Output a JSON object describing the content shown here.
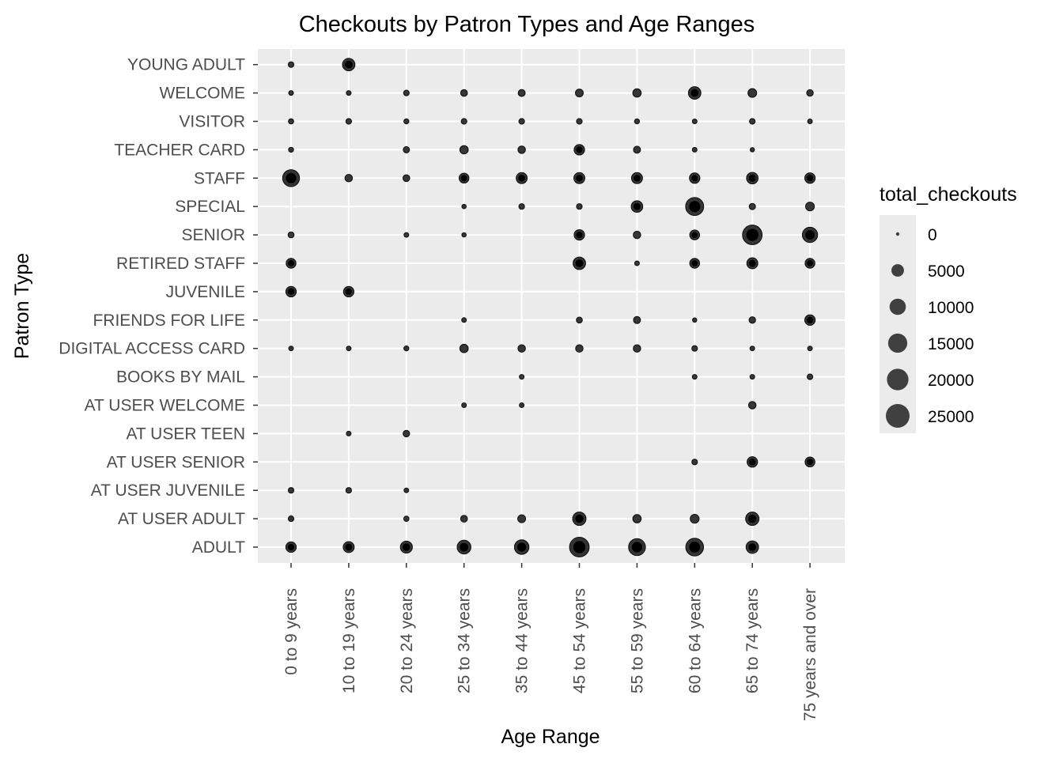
{
  "chart_data": {
    "type": "scatter",
    "title": "Checkouts by Patron Types and Age Ranges",
    "xlabel": "Age Range",
    "ylabel": "Patron Type",
    "x_categories": [
      "0 to 9 years",
      "10 to 19 years",
      "20 to 24 years",
      "25 to 34 years",
      "35 to 44 years",
      "45 to 54 years",
      "55 to 59 years",
      "60 to 64 years",
      "65 to 74 years",
      "75 years and over"
    ],
    "y_categories": [
      "ADULT",
      "AT USER ADULT",
      "AT USER JUVENILE",
      "AT USER SENIOR",
      "AT USER TEEN",
      "AT USER WELCOME",
      "BOOKS BY MAIL",
      "DIGITAL ACCESS CARD",
      "FRIENDS FOR LIFE",
      "JUVENILE",
      "RETIRED STAFF",
      "SENIOR",
      "SPECIAL",
      "STAFF",
      "TEACHER CARD",
      "VISITOR",
      "WELCOME",
      "YOUNG ADULT"
    ],
    "size_variable": "total_checkouts",
    "legend": {
      "title": "total_checkouts",
      "breaks": [
        0,
        5000,
        10000,
        15000,
        20000,
        25000
      ],
      "labels": [
        "0",
        "5000",
        "10000",
        "15000",
        "20000",
        "25000"
      ],
      "position": "right"
    },
    "grid": true,
    "colors": {
      "panel": "#ebebeb",
      "grid": "#ffffff",
      "point": "#000000",
      "legend_point": "#404040",
      "text": "#4d4d4d"
    },
    "points": [
      {
        "patron": "YOUNG ADULT",
        "age": "0 to 9 years",
        "total_checkouts": 300
      },
      {
        "patron": "YOUNG ADULT",
        "age": "10 to 19 years",
        "total_checkouts": 5000
      },
      {
        "patron": "WELCOME",
        "age": "0 to 9 years",
        "total_checkouts": 100
      },
      {
        "patron": "WELCOME",
        "age": "10 to 19 years",
        "total_checkouts": 100
      },
      {
        "patron": "WELCOME",
        "age": "20 to 24 years",
        "total_checkouts": 300
      },
      {
        "patron": "WELCOME",
        "age": "25 to 34 years",
        "total_checkouts": 700
      },
      {
        "patron": "WELCOME",
        "age": "35 to 44 years",
        "total_checkouts": 800
      },
      {
        "patron": "WELCOME",
        "age": "45 to 54 years",
        "total_checkouts": 1200
      },
      {
        "patron": "WELCOME",
        "age": "55 to 59 years",
        "total_checkouts": 1500
      },
      {
        "patron": "WELCOME",
        "age": "60 to 64 years",
        "total_checkouts": 5000
      },
      {
        "patron": "WELCOME",
        "age": "65 to 74 years",
        "total_checkouts": 1700
      },
      {
        "patron": "WELCOME",
        "age": "75 years and over",
        "total_checkouts": 600
      },
      {
        "patron": "VISITOR",
        "age": "0 to 9 years",
        "total_checkouts": 200
      },
      {
        "patron": "VISITOR",
        "age": "10 to 19 years",
        "total_checkouts": 300
      },
      {
        "patron": "VISITOR",
        "age": "20 to 24 years",
        "total_checkouts": 150
      },
      {
        "patron": "VISITOR",
        "age": "25 to 34 years",
        "total_checkouts": 300
      },
      {
        "patron": "VISITOR",
        "age": "35 to 44 years",
        "total_checkouts": 300
      },
      {
        "patron": "VISITOR",
        "age": "45 to 54 years",
        "total_checkouts": 300
      },
      {
        "patron": "VISITOR",
        "age": "55 to 59 years",
        "total_checkouts": 150
      },
      {
        "patron": "VISITOR",
        "age": "60 to 64 years",
        "total_checkouts": 100
      },
      {
        "patron": "VISITOR",
        "age": "65 to 74 years",
        "total_checkouts": 300
      },
      {
        "patron": "VISITOR",
        "age": "75 years and over",
        "total_checkouts": 100
      },
      {
        "patron": "TEACHER CARD",
        "age": "0 to 9 years",
        "total_checkouts": 150
      },
      {
        "patron": "TEACHER CARD",
        "age": "20 to 24 years",
        "total_checkouts": 500
      },
      {
        "patron": "TEACHER CARD",
        "age": "25 to 34 years",
        "total_checkouts": 1500
      },
      {
        "patron": "TEACHER CARD",
        "age": "35 to 44 years",
        "total_checkouts": 1000
      },
      {
        "patron": "TEACHER CARD",
        "age": "45 to 54 years",
        "total_checkouts": 3000
      },
      {
        "patron": "TEACHER CARD",
        "age": "55 to 59 years",
        "total_checkouts": 800
      },
      {
        "patron": "TEACHER CARD",
        "age": "60 to 64 years",
        "total_checkouts": 100
      },
      {
        "patron": "TEACHER CARD",
        "age": "65 to 74 years",
        "total_checkouts": 50
      },
      {
        "patron": "STAFF",
        "age": "0 to 9 years",
        "total_checkouts": 11000
      },
      {
        "patron": "STAFF",
        "age": "10 to 19 years",
        "total_checkouts": 1000
      },
      {
        "patron": "STAFF",
        "age": "20 to 24 years",
        "total_checkouts": 700
      },
      {
        "patron": "STAFF",
        "age": "25 to 34 years",
        "total_checkouts": 2500
      },
      {
        "patron": "STAFF",
        "age": "35 to 44 years",
        "total_checkouts": 3500
      },
      {
        "patron": "STAFF",
        "age": "45 to 54 years",
        "total_checkouts": 3500
      },
      {
        "patron": "STAFF",
        "age": "55 to 59 years",
        "total_checkouts": 3500
      },
      {
        "patron": "STAFF",
        "age": "60 to 64 years",
        "total_checkouts": 3000
      },
      {
        "patron": "STAFF",
        "age": "65 to 74 years",
        "total_checkouts": 4000
      },
      {
        "patron": "STAFF",
        "age": "75 years and over",
        "total_checkouts": 3000
      },
      {
        "patron": "SPECIAL",
        "age": "25 to 34 years",
        "total_checkouts": 50
      },
      {
        "patron": "SPECIAL",
        "age": "35 to 44 years",
        "total_checkouts": 300
      },
      {
        "patron": "SPECIAL",
        "age": "45 to 54 years",
        "total_checkouts": 300
      },
      {
        "patron": "SPECIAL",
        "age": "55 to 59 years",
        "total_checkouts": 4000
      },
      {
        "patron": "SPECIAL",
        "age": "60 to 64 years",
        "total_checkouts": 13000
      },
      {
        "patron": "SPECIAL",
        "age": "65 to 74 years",
        "total_checkouts": 500
      },
      {
        "patron": "SPECIAL",
        "age": "75 years and over",
        "total_checkouts": 1700
      },
      {
        "patron": "SENIOR",
        "age": "0 to 9 years",
        "total_checkouts": 400
      },
      {
        "patron": "SENIOR",
        "age": "20 to 24 years",
        "total_checkouts": 100
      },
      {
        "patron": "SENIOR",
        "age": "25 to 34 years",
        "total_checkouts": 50
      },
      {
        "patron": "SENIOR",
        "age": "45 to 54 years",
        "total_checkouts": 3000
      },
      {
        "patron": "SENIOR",
        "age": "55 to 59 years",
        "total_checkouts": 1000
      },
      {
        "patron": "SENIOR",
        "age": "60 to 64 years",
        "total_checkouts": 2500
      },
      {
        "patron": "SENIOR",
        "age": "65 to 74 years",
        "total_checkouts": 16000
      },
      {
        "patron": "SENIOR",
        "age": "75 years and over",
        "total_checkouts": 8500
      },
      {
        "patron": "RETIRED STAFF",
        "age": "0 to 9 years",
        "total_checkouts": 2500
      },
      {
        "patron": "RETIRED STAFF",
        "age": "45 to 54 years",
        "total_checkouts": 5000
      },
      {
        "patron": "RETIRED STAFF",
        "age": "55 to 59 years",
        "total_checkouts": 100
      },
      {
        "patron": "RETIRED STAFF",
        "age": "60 to 64 years",
        "total_checkouts": 2500
      },
      {
        "patron": "RETIRED STAFF",
        "age": "65 to 74 years",
        "total_checkouts": 3500
      },
      {
        "patron": "RETIRED STAFF",
        "age": "75 years and over",
        "total_checkouts": 2500
      },
      {
        "patron": "JUVENILE",
        "age": "0 to 9 years",
        "total_checkouts": 3000
      },
      {
        "patron": "JUVENILE",
        "age": "10 to 19 years",
        "total_checkouts": 3000
      },
      {
        "patron": "FRIENDS FOR LIFE",
        "age": "25 to 34 years",
        "total_checkouts": 100
      },
      {
        "patron": "FRIENDS FOR LIFE",
        "age": "45 to 54 years",
        "total_checkouts": 400
      },
      {
        "patron": "FRIENDS FOR LIFE",
        "age": "55 to 59 years",
        "total_checkouts": 800
      },
      {
        "patron": "FRIENDS FOR LIFE",
        "age": "60 to 64 years",
        "total_checkouts": 50
      },
      {
        "patron": "FRIENDS FOR LIFE",
        "age": "65 to 74 years",
        "total_checkouts": 600
      },
      {
        "patron": "FRIENDS FOR LIFE",
        "age": "75 years and over",
        "total_checkouts": 3000
      },
      {
        "patron": "DIGITAL ACCESS CARD",
        "age": "0 to 9 years",
        "total_checkouts": 100
      },
      {
        "patron": "DIGITAL ACCESS CARD",
        "age": "10 to 19 years",
        "total_checkouts": 100
      },
      {
        "patron": "DIGITAL ACCESS CARD",
        "age": "20 to 24 years",
        "total_checkouts": 150
      },
      {
        "patron": "DIGITAL ACCESS CARD",
        "age": "25 to 34 years",
        "total_checkouts": 1500
      },
      {
        "patron": "DIGITAL ACCESS CARD",
        "age": "35 to 44 years",
        "total_checkouts": 1000
      },
      {
        "patron": "DIGITAL ACCESS CARD",
        "age": "45 to 54 years",
        "total_checkouts": 1000
      },
      {
        "patron": "DIGITAL ACCESS CARD",
        "age": "55 to 59 years",
        "total_checkouts": 1000
      },
      {
        "patron": "DIGITAL ACCESS CARD",
        "age": "60 to 64 years",
        "total_checkouts": 300
      },
      {
        "patron": "DIGITAL ACCESS CARD",
        "age": "65 to 74 years",
        "total_checkouts": 100
      },
      {
        "patron": "DIGITAL ACCESS CARD",
        "age": "75 years and over",
        "total_checkouts": 100
      },
      {
        "patron": "BOOKS BY MAIL",
        "age": "35 to 44 years",
        "total_checkouts": 100
      },
      {
        "patron": "BOOKS BY MAIL",
        "age": "60 to 64 years",
        "total_checkouts": 100
      },
      {
        "patron": "BOOKS BY MAIL",
        "age": "65 to 74 years",
        "total_checkouts": 100
      },
      {
        "patron": "BOOKS BY MAIL",
        "age": "75 years and over",
        "total_checkouts": 300
      },
      {
        "patron": "AT USER WELCOME",
        "age": "25 to 34 years",
        "total_checkouts": 100
      },
      {
        "patron": "AT USER WELCOME",
        "age": "35 to 44 years",
        "total_checkouts": 100
      },
      {
        "patron": "AT USER WELCOME",
        "age": "65 to 74 years",
        "total_checkouts": 1000
      },
      {
        "patron": "AT USER TEEN",
        "age": "10 to 19 years",
        "total_checkouts": 100
      },
      {
        "patron": "AT USER TEEN",
        "age": "20 to 24 years",
        "total_checkouts": 600
      },
      {
        "patron": "AT USER SENIOR",
        "age": "60 to 64 years",
        "total_checkouts": 300
      },
      {
        "patron": "AT USER SENIOR",
        "age": "65 to 74 years",
        "total_checkouts": 3000
      },
      {
        "patron": "AT USER SENIOR",
        "age": "75 years and over",
        "total_checkouts": 2500
      },
      {
        "patron": "AT USER JUVENILE",
        "age": "0 to 9 years",
        "total_checkouts": 300
      },
      {
        "patron": "AT USER JUVENILE",
        "age": "10 to 19 years",
        "total_checkouts": 300
      },
      {
        "patron": "AT USER JUVENILE",
        "age": "20 to 24 years",
        "total_checkouts": 100
      },
      {
        "patron": "AT USER ADULT",
        "age": "0 to 9 years",
        "total_checkouts": 300
      },
      {
        "patron": "AT USER ADULT",
        "age": "20 to 24 years",
        "total_checkouts": 200
      },
      {
        "patron": "AT USER ADULT",
        "age": "25 to 34 years",
        "total_checkouts": 700
      },
      {
        "patron": "AT USER ADULT",
        "age": "35 to 44 years",
        "total_checkouts": 1200
      },
      {
        "patron": "AT USER ADULT",
        "age": "45 to 54 years",
        "total_checkouts": 6000
      },
      {
        "patron": "AT USER ADULT",
        "age": "55 to 59 years",
        "total_checkouts": 1500
      },
      {
        "patron": "AT USER ADULT",
        "age": "60 to 64 years",
        "total_checkouts": 1800
      },
      {
        "patron": "AT USER ADULT",
        "age": "65 to 74 years",
        "total_checkouts": 6000
      },
      {
        "patron": "ADULT",
        "age": "0 to 9 years",
        "total_checkouts": 3000
      },
      {
        "patron": "ADULT",
        "age": "10 to 19 years",
        "total_checkouts": 3500
      },
      {
        "patron": "ADULT",
        "age": "20 to 24 years",
        "total_checkouts": 4500
      },
      {
        "patron": "ADULT",
        "age": "25 to 34 years",
        "total_checkouts": 6500
      },
      {
        "patron": "ADULT",
        "age": "35 to 44 years",
        "total_checkouts": 7500
      },
      {
        "patron": "ADULT",
        "age": "45 to 54 years",
        "total_checkouts": 16000
      },
      {
        "patron": "ADULT",
        "age": "55 to 59 years",
        "total_checkouts": 11000
      },
      {
        "patron": "ADULT",
        "age": "60 to 64 years",
        "total_checkouts": 12500
      },
      {
        "patron": "ADULT",
        "age": "65 to 74 years",
        "total_checkouts": 5000
      }
    ]
  }
}
